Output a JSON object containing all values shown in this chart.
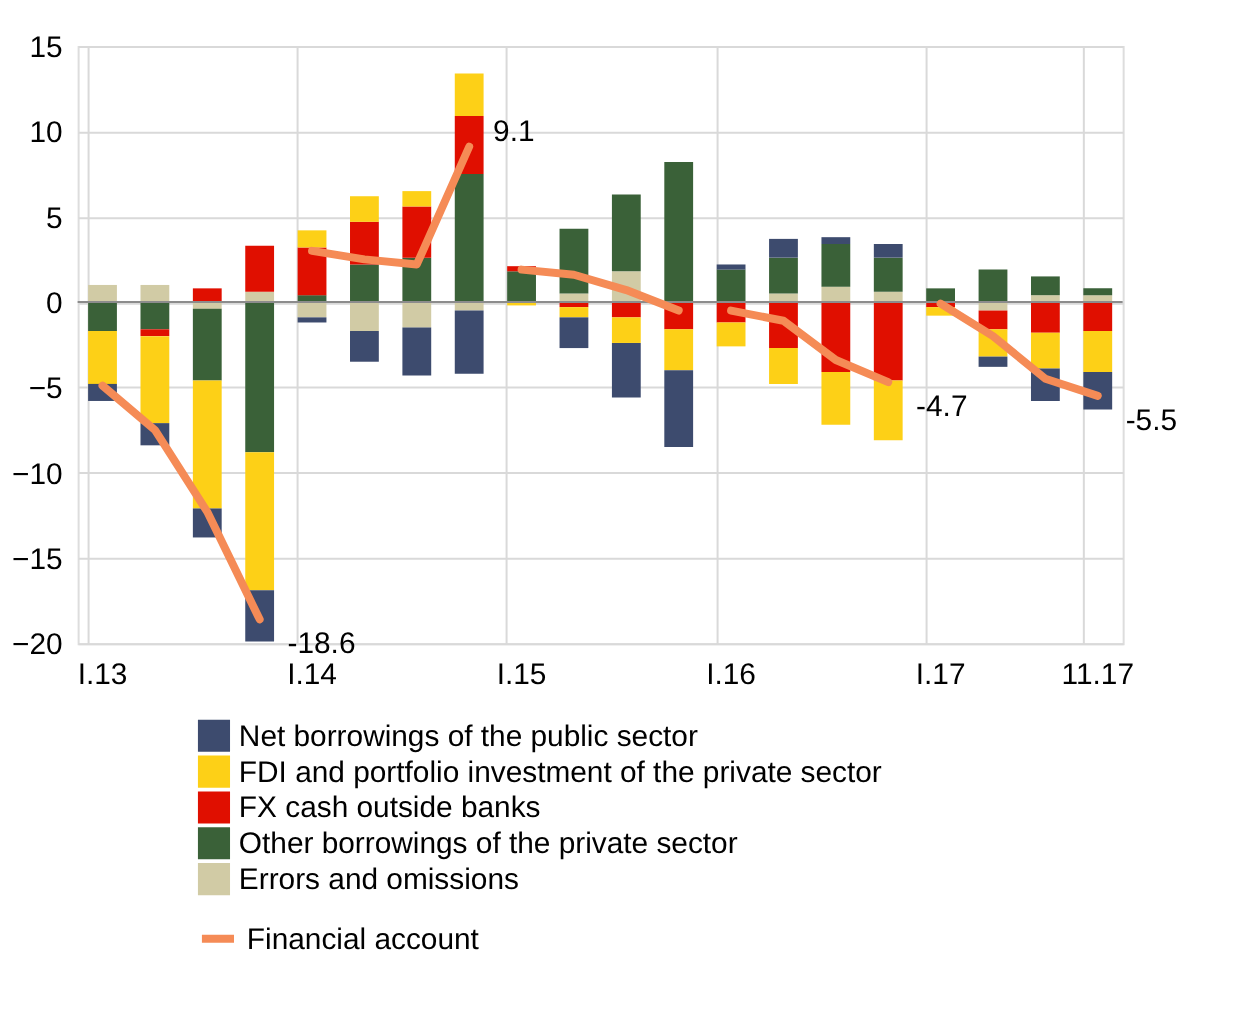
{
  "chart_data": {
    "type": "bar",
    "stacked": true,
    "categories": [
      "I.13",
      null,
      null,
      null,
      "I.14",
      null,
      null,
      null,
      "I.15",
      null,
      null,
      null,
      "I.16",
      null,
      null,
      null,
      "I.17",
      null,
      null,
      "11.17"
    ],
    "ylim": [
      -20,
      15
    ],
    "yticks": [
      -20,
      -15,
      -10,
      -5,
      0,
      5,
      10,
      15
    ],
    "grid": true,
    "legend": "bottom",
    "series": [
      {
        "name": "Errors and omissions",
        "color": "#d1cba5",
        "values": [
          1.0,
          1.0,
          -0.4,
          0.6,
          -0.9,
          -1.7,
          -1.5,
          -0.5,
          null,
          0.5,
          1.8,
          null,
          null,
          0.5,
          0.9,
          0.6,
          null,
          -0.5,
          0.4,
          0.4
        ]
      },
      {
        "name": "Other borrowings of the private sector",
        "color": "#3a6138",
        "values": [
          -1.7,
          -1.6,
          -4.2,
          -8.8,
          0.4,
          2.2,
          2.6,
          7.5,
          1.8,
          3.8,
          4.5,
          8.2,
          1.9,
          2.1,
          2.5,
          2.0,
          0.8,
          1.9,
          1.1,
          0.4
        ]
      },
      {
        "name": "FX cash outside banks",
        "color": "#e00f00",
        "values": [
          null,
          -0.4,
          0.8,
          2.7,
          2.8,
          2.5,
          3.0,
          3.4,
          0.3,
          -0.3,
          -0.9,
          -1.6,
          -1.2,
          -2.7,
          -4.1,
          -4.6,
          -0.3,
          -1.1,
          -1.8,
          -1.7
        ]
      },
      {
        "name": "FDI and portfolio investment of the private sector",
        "color": "#fdd017",
        "values": [
          -3.1,
          -5.1,
          -7.5,
          -8.1,
          1.0,
          1.5,
          0.9,
          2.5,
          -0.2,
          -0.6,
          -1.5,
          -2.4,
          -1.4,
          -2.1,
          -3.1,
          -3.5,
          -0.5,
          -1.6,
          -2.1,
          -2.4
        ]
      },
      {
        "name": "Net borrowings of the public sector",
        "color": "#3d4b6e",
        "values": [
          -1.0,
          -1.3,
          -1.7,
          -3.0,
          -0.3,
          -1.8,
          -2.8,
          -3.7,
          null,
          -1.8,
          -3.2,
          -4.5,
          0.3,
          1.1,
          0.4,
          0.8,
          null,
          -0.6,
          -1.9,
          -2.2
        ]
      },
      {
        "name": "Financial account",
        "type": "line",
        "color": "#f58b56",
        "values": [
          -4.9,
          -7.5,
          -12.3,
          -18.6,
          null,
          null,
          null,
          null,
          null,
          null,
          null,
          null,
          null,
          null,
          null,
          null,
          null,
          null,
          null,
          null
        ],
        "value_labels": [
          null,
          null,
          null,
          "-18.6",
          null,
          null,
          null,
          null,
          null,
          null,
          null,
          null,
          null,
          null,
          null,
          null,
          null,
          null,
          null,
          null
        ]
      },
      {
        "type": "line",
        "color": "#f58b56",
        "values": [
          null,
          null,
          null,
          null,
          3.0,
          2.5,
          2.2,
          9.1,
          null,
          null,
          null,
          null,
          null,
          null,
          null,
          null,
          null,
          null,
          null,
          null
        ],
        "value_labels": [
          null,
          null,
          null,
          null,
          null,
          null,
          null,
          "9.1",
          null,
          null,
          null,
          null,
          null,
          null,
          null,
          null,
          null,
          null,
          null,
          null
        ]
      },
      {
        "type": "line",
        "color": "#f58b56",
        "values": [
          null,
          null,
          null,
          null,
          null,
          null,
          null,
          null,
          1.9,
          1.6,
          0.7,
          -0.5,
          null,
          null,
          null,
          null,
          null,
          null,
          null,
          null
        ]
      },
      {
        "type": "line",
        "color": "#f58b56",
        "values": [
          null,
          null,
          null,
          null,
          null,
          null,
          null,
          null,
          null,
          null,
          null,
          null,
          -0.5,
          -1.1,
          -3.4,
          -4.7,
          null,
          null,
          null,
          null
        ],
        "value_labels": [
          null,
          null,
          null,
          null,
          null,
          null,
          null,
          null,
          null,
          null,
          null,
          null,
          null,
          null,
          null,
          "-4.7",
          null,
          null,
          null,
          null
        ]
      },
      {
        "type": "line",
        "color": "#f58b56",
        "values": [
          null,
          null,
          null,
          null,
          null,
          null,
          null,
          null,
          null,
          null,
          null,
          null,
          null,
          null,
          null,
          null,
          -0.1,
          -2.0,
          -4.5,
          -5.5
        ],
        "value_labels": [
          null,
          null,
          null,
          null,
          null,
          null,
          null,
          null,
          null,
          null,
          null,
          null,
          null,
          null,
          null,
          null,
          null,
          null,
          null,
          "-5.5"
        ]
      }
    ]
  }
}
